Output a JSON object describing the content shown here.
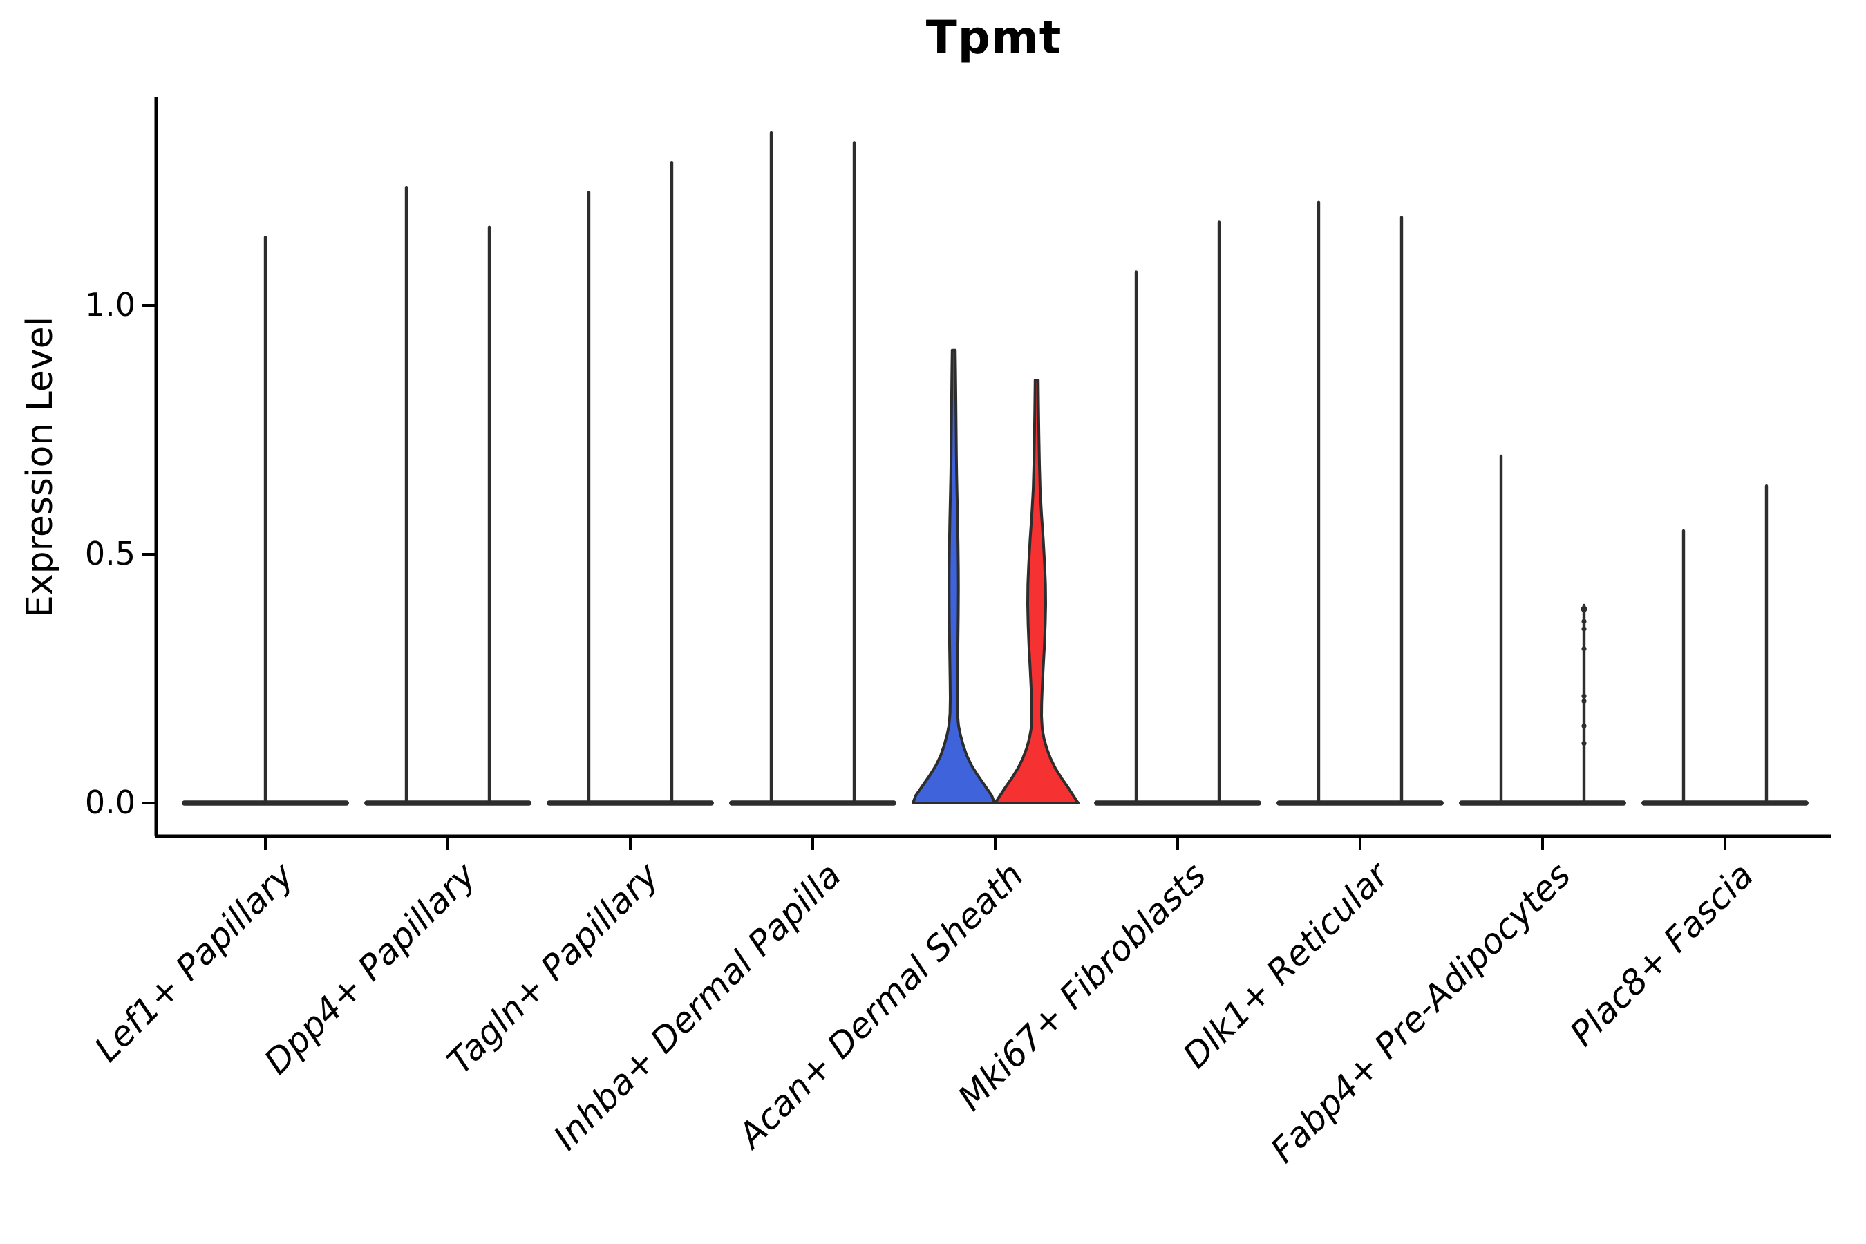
{
  "title": "Tpmt",
  "axes": {
    "ylabel": "Expression Level",
    "ytick_labels": [
      "0.0",
      "0.5",
      "1.0"
    ]
  },
  "colors": {
    "violin_blue": "#3E63DB",
    "violin_red": "#F53131",
    "outline": "#2D2D2D",
    "axis": "#000000"
  },
  "chart_data": {
    "type": "violin",
    "title": "Tpmt",
    "xlabel": "",
    "ylabel": "Expression Level",
    "yticks": [
      0.0,
      0.5,
      1.0
    ],
    "ylim": [
      0,
      1.41
    ],
    "grid": false,
    "legend": "none",
    "categories": [
      "Lef1+ Papillary",
      "Dpp4+ Papillary",
      "Tagln+ Papillary",
      "Inhba+ Dermal Papilla",
      "Acan+ Dermal Sheath",
      "Mki67+ Fibroblasts",
      "Dlk1+ Reticular",
      "Fabp4+ Pre-Adipocytes",
      "Plac8+ Fascia"
    ],
    "description": "Split violin plot of Tpmt expression; two dodged violins per cluster. Nearly all mass at 0 with thin spikes to the max expressed cell; Acan+ Dermal Sheath shows filled blue (left) and red (right) violins.",
    "violins": [
      {
        "category": "Lef1+ Papillary",
        "parts": [
          {
            "kind": "spike",
            "offset": 0,
            "max": 1.14
          }
        ]
      },
      {
        "category": "Dpp4+ Papillary",
        "parts": [
          {
            "kind": "spike",
            "offset": -60,
            "max": 1.24
          },
          {
            "kind": "spike",
            "offset": 60,
            "max": 1.16
          }
        ]
      },
      {
        "category": "Tagln+ Papillary",
        "parts": [
          {
            "kind": "spike",
            "offset": -60,
            "max": 1.23
          },
          {
            "kind": "spike",
            "offset": 60,
            "max": 1.29
          }
        ]
      },
      {
        "category": "Inhba+ Dermal Papilla",
        "parts": [
          {
            "kind": "spike",
            "offset": -60,
            "max": 1.35
          },
          {
            "kind": "spike",
            "offset": 60,
            "max": 1.33
          }
        ]
      },
      {
        "category": "Acan+ Dermal Sheath",
        "parts": [
          {
            "kind": "violin",
            "offset": -60,
            "max": 0.91,
            "group": "blue",
            "profile": [
              [
                0.91,
                2.2
              ],
              [
                0.87,
                2.6
              ],
              [
                0.82,
                3.0
              ],
              [
                0.76,
                3.4
              ],
              [
                0.7,
                3.8
              ],
              [
                0.66,
                4.2
              ],
              [
                0.62,
                4.8
              ],
              [
                0.57,
                5.6
              ],
              [
                0.52,
                6.2
              ],
              [
                0.47,
                6.6
              ],
              [
                0.43,
                6.7
              ],
              [
                0.38,
                6.5
              ],
              [
                0.33,
                6.1
              ],
              [
                0.28,
                5.6
              ],
              [
                0.24,
                5.2
              ],
              [
                0.21,
                5.0
              ],
              [
                0.18,
                5.4
              ],
              [
                0.155,
                7.0
              ],
              [
                0.135,
                10
              ],
              [
                0.115,
                14
              ],
              [
                0.095,
                19
              ],
              [
                0.075,
                26
              ],
              [
                0.055,
                35
              ],
              [
                0.035,
                45
              ],
              [
                0.015,
                55
              ],
              [
                0.0,
                59
              ]
            ]
          },
          {
            "kind": "violin",
            "offset": 60,
            "max": 0.85,
            "group": "red",
            "profile": [
              [
                0.85,
                2.2
              ],
              [
                0.8,
                2.6
              ],
              [
                0.74,
                3.2
              ],
              [
                0.68,
                4.0
              ],
              [
                0.63,
                5.0
              ],
              [
                0.58,
                7.0
              ],
              [
                0.53,
                9.5
              ],
              [
                0.48,
                11.5
              ],
              [
                0.44,
                12.7
              ],
              [
                0.4,
                13.0
              ],
              [
                0.36,
                12.4
              ],
              [
                0.31,
                11.0
              ],
              [
                0.27,
                9.4
              ],
              [
                0.23,
                8.0
              ],
              [
                0.2,
                7.2
              ],
              [
                0.175,
                7.0
              ],
              [
                0.15,
                8.0
              ],
              [
                0.13,
                10.5
              ],
              [
                0.11,
                14.5
              ],
              [
                0.09,
                20
              ],
              [
                0.07,
                27
              ],
              [
                0.05,
                36
              ],
              [
                0.03,
                46
              ],
              [
                0.015,
                53
              ],
              [
                0.0,
                60
              ]
            ]
          }
        ]
      },
      {
        "category": "Mki67+ Fibroblasts",
        "parts": [
          {
            "kind": "spike",
            "offset": -60,
            "max": 1.07
          },
          {
            "kind": "spike",
            "offset": 60,
            "max": 1.17
          }
        ]
      },
      {
        "category": "Dlk1+ Reticular",
        "parts": [
          {
            "kind": "spike",
            "offset": -60,
            "max": 1.21
          },
          {
            "kind": "spike",
            "offset": 60,
            "max": 1.18
          }
        ]
      },
      {
        "category": "Fabp4+ Pre-Adipocytes",
        "parts": [
          {
            "kind": "spike",
            "offset": -60,
            "max": 0.7
          },
          {
            "kind": "spike",
            "offset": 60,
            "max": 0.4,
            "dots": [
              0.39,
              0.365,
              0.35,
              0.31,
              0.215,
              0.205,
              0.155,
              0.12
            ]
          }
        ]
      },
      {
        "category": "Plac8+ Fascia",
        "parts": [
          {
            "kind": "spike",
            "offset": -60,
            "max": 0.55
          },
          {
            "kind": "spike",
            "offset": 60,
            "max": 0.64
          }
        ]
      }
    ]
  }
}
